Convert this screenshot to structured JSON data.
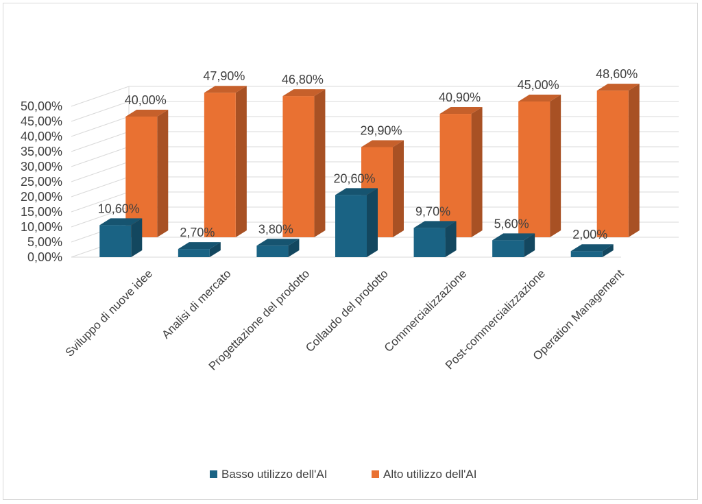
{
  "chart_data": {
    "type": "bar",
    "subtype": "3d-clustered-depth",
    "categories": [
      "Sviluppo di nuove idee",
      "Analisi di mercato",
      "Progettazione del prodotto",
      "Collaudo del prodotto",
      "Commercializzazione",
      "Post-commercializzazione",
      "Operation Management"
    ],
    "series": [
      {
        "name": "Basso utilizzo dell'AI",
        "color": "#1a6384",
        "values": [
          10.6,
          2.7,
          3.8,
          20.6,
          9.7,
          5.6,
          2.0
        ],
        "labels": [
          "10,60%",
          "2,70%",
          "3,80%",
          "20,60%",
          "9,70%",
          "5,60%",
          "2,00%"
        ]
      },
      {
        "name": "Alto utilizzo dell'AI",
        "color": "#e97132",
        "values": [
          40.0,
          47.9,
          46.8,
          29.9,
          40.9,
          45.0,
          48.6
        ],
        "labels": [
          "40,00%",
          "47,90%",
          "46,80%",
          "29,90%",
          "40,90%",
          "45,00%",
          "48,60%"
        ]
      }
    ],
    "y_ticks": [
      "0,00%",
      "5,00%",
      "10,00%",
      "15,00%",
      "20,00%",
      "25,00%",
      "30,00%",
      "35,00%",
      "40,00%",
      "45,00%",
      "50,00%"
    ],
    "ylim": [
      0,
      50
    ],
    "grid": true,
    "legend": "bottom"
  }
}
